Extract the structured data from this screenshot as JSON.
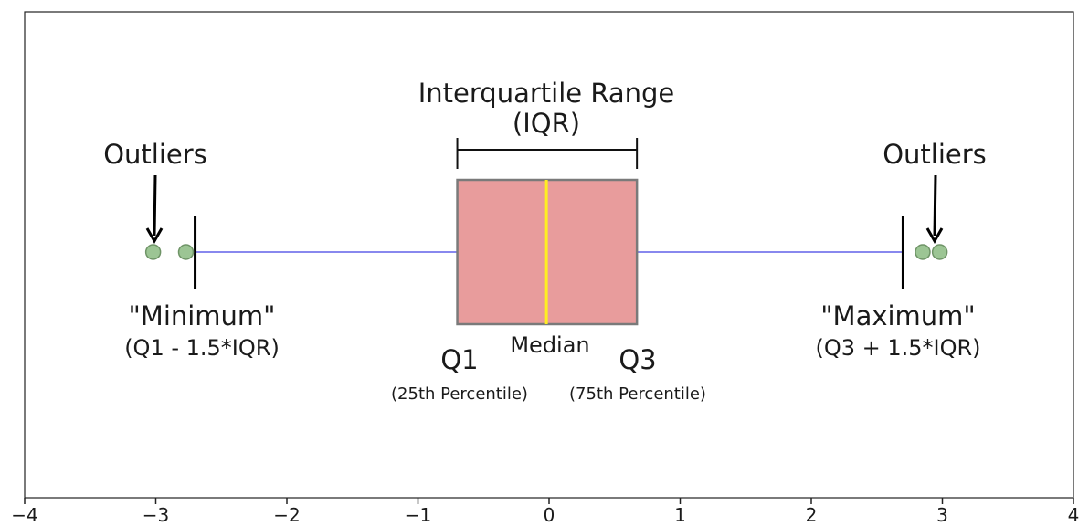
{
  "chart_data": {
    "type": "boxplot",
    "xlim": [
      -4,
      4
    ],
    "x_ticks": [
      -4,
      -3,
      -2,
      -1,
      0,
      1,
      2,
      3,
      4
    ],
    "x_tick_labels": [
      "−4",
      "−3",
      "−2",
      "−1",
      "0",
      "1",
      "2",
      "3",
      "4"
    ],
    "grid": false,
    "box": {
      "whisker_low": -2.7,
      "q1": -0.7,
      "median": -0.02,
      "q3": 0.67,
      "whisker_high": 2.7,
      "outliers": [
        -3.02,
        -2.77,
        2.85,
        2.98
      ]
    },
    "colors": {
      "box_fill": "#e89c9c",
      "box_edge": "#7a7a7a",
      "median": "#ffee22",
      "whisker": "#8888ee",
      "cap": "#000000",
      "outlier_fill": "#9cc594",
      "outlier_edge": "#6f9467"
    },
    "annotations": {
      "iqr_line1": "Interquartile Range",
      "iqr_line2": "(IQR)",
      "outliers_left": "Outliers",
      "outliers_right": "Outliers",
      "minimum": "\"Minimum\"",
      "minimum_formula": "(Q1 - 1.5*IQR)",
      "maximum": "\"Maximum\"",
      "maximum_formula": "(Q3 + 1.5*IQR)",
      "q1": "Q1",
      "q1_sub": "(25th Percentile)",
      "median": "Median",
      "q3": "Q3",
      "q3_sub": "(75th Percentile)"
    }
  }
}
